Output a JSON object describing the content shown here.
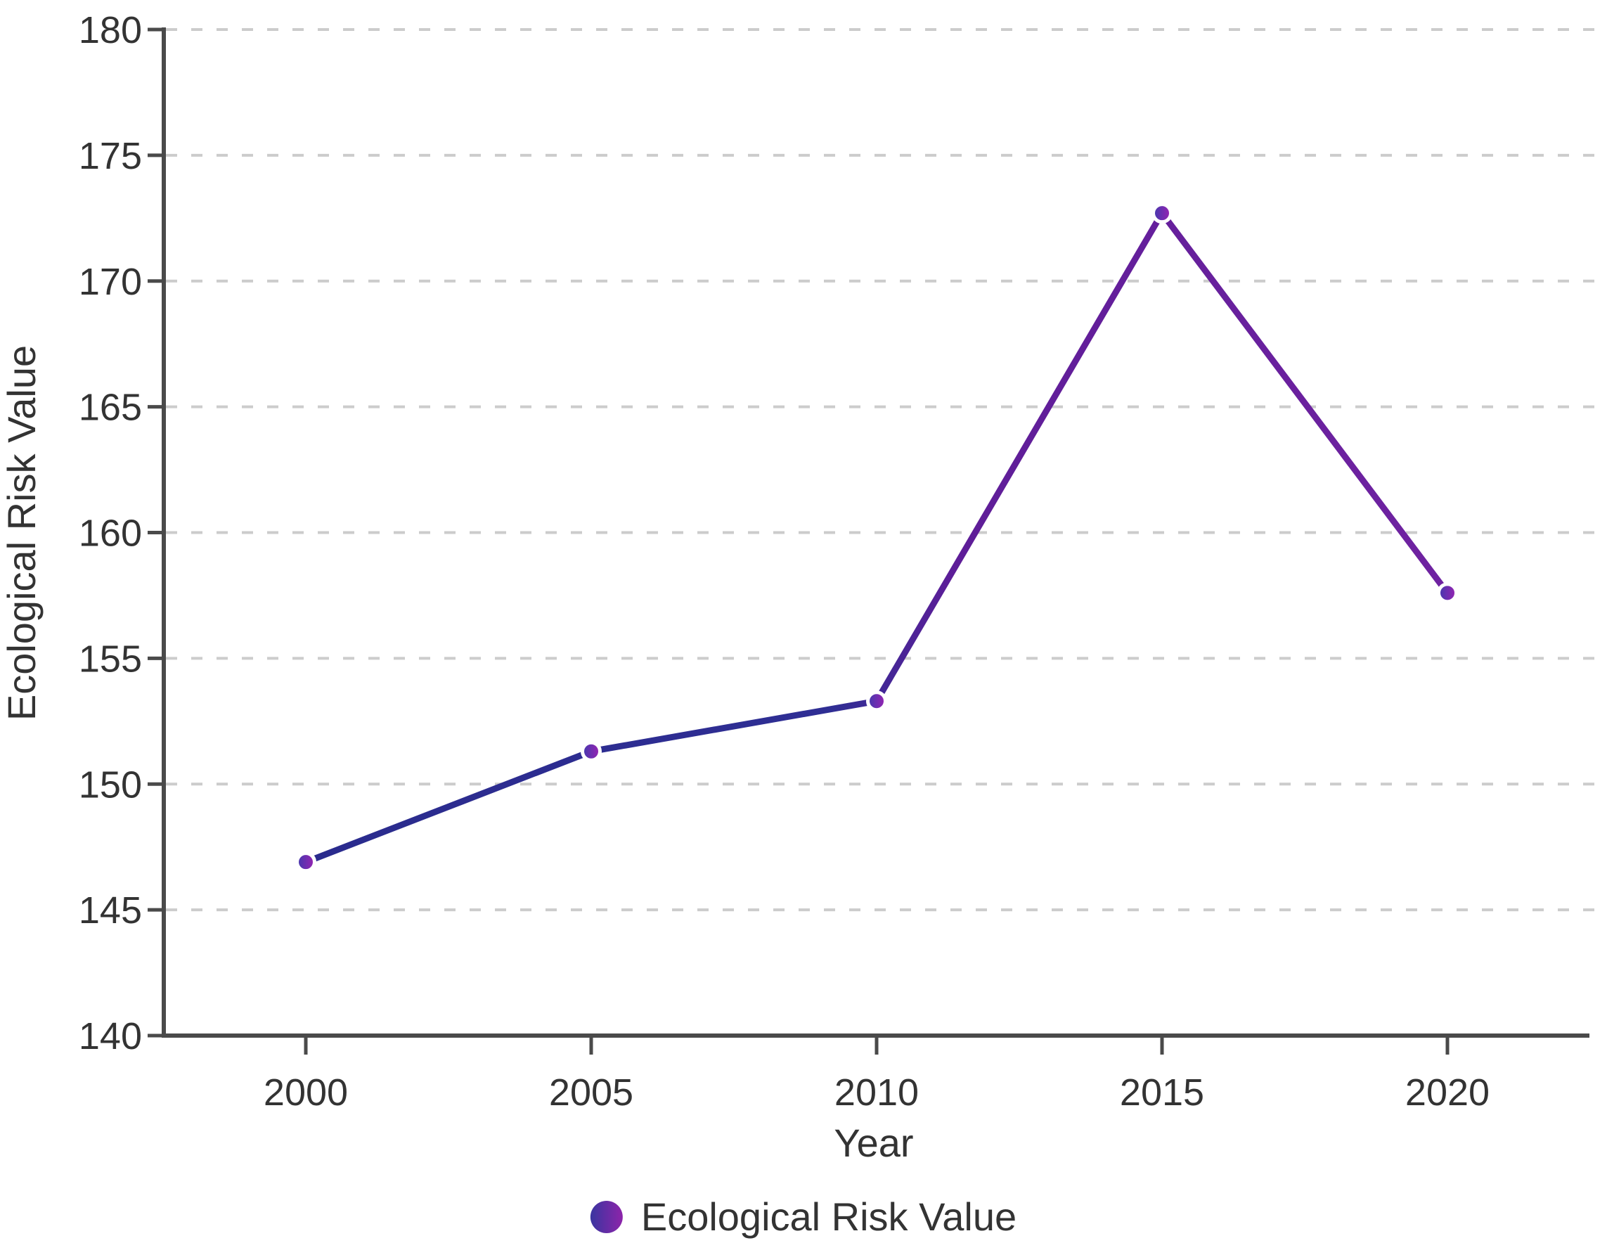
{
  "chart_data": {
    "type": "line",
    "title": "",
    "xlabel": "Year",
    "ylabel": "Ecological Risk Value",
    "categories": [
      "2000",
      "2005",
      "2010",
      "2015",
      "2020"
    ],
    "series": [
      {
        "name": "Ecological Risk Value",
        "values": [
          146.9,
          151.3,
          153.3,
          172.7,
          157.6
        ]
      }
    ],
    "ylim": [
      140,
      180
    ],
    "yticks": [
      140,
      145,
      150,
      155,
      160,
      165,
      170,
      175,
      180
    ],
    "ytick_labels": [
      "140",
      "145",
      "150",
      "155",
      "160",
      "165",
      "170",
      "175",
      "180"
    ],
    "grid": "horizontal-dashed",
    "legend_position": "bottom-center",
    "colors": {
      "line_gradient_start": "#2a2b8d",
      "line_gradient_end": "#6f22a1",
      "marker_gradient_start": "#433aae",
      "marker_gradient_end": "#9922b2",
      "axis": "#4a4a4a",
      "grid": "#cccccc",
      "text": "#333333",
      "background": "#ffffff"
    }
  }
}
